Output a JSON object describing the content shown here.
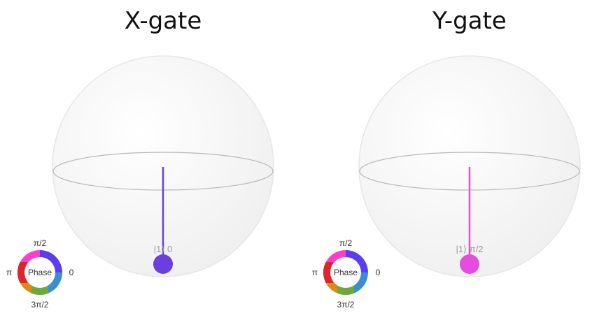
{
  "panels": [
    {
      "title": "X-gate",
      "state_label": "|1⟩ 0",
      "vector_color": "#6a3fe0",
      "phase_wheel": {
        "top": "π/2",
        "left": "π",
        "right": "0",
        "bottom": "3π/2",
        "center": "Phase"
      }
    },
    {
      "title": "Y-gate",
      "state_label": "|1⟩ π/2",
      "vector_color": "#e64ce0",
      "phase_wheel": {
        "top": "π/2",
        "left": "π",
        "right": "0",
        "bottom": "3π/2",
        "center": "Phase"
      }
    }
  ],
  "colors": {
    "sphere_edge": "#e4e4e4",
    "equator": "#b5b5b5",
    "sphere_fill": "#f6f6f6"
  }
}
